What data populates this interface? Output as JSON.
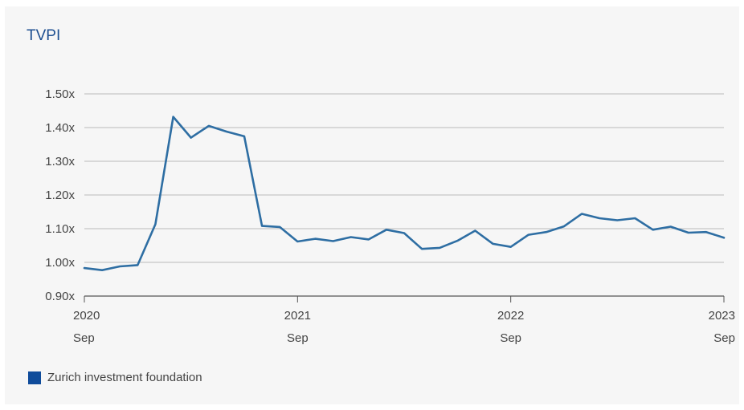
{
  "chart_data": {
    "type": "line",
    "title": "TVPI",
    "xlabel": "",
    "ylabel": "",
    "ylim": [
      0.9,
      1.5
    ],
    "y_ticks": [
      {
        "value": 0.9,
        "label": "0.90x"
      },
      {
        "value": 1.0,
        "label": "1.00x"
      },
      {
        "value": 1.1,
        "label": "1.10x"
      },
      {
        "value": 1.2,
        "label": "1.20x"
      },
      {
        "value": 1.3,
        "label": "1.30x"
      },
      {
        "value": 1.4,
        "label": "1.40x"
      },
      {
        "value": 1.5,
        "label": "1.50x"
      }
    ],
    "x_ticks": [
      {
        "index": 0,
        "year": "2020",
        "month": "Sep"
      },
      {
        "index": 12,
        "year": "2021",
        "month": "Sep"
      },
      {
        "index": 24,
        "year": "2022",
        "month": "Sep"
      },
      {
        "index": 36,
        "year": "2023",
        "month": "Sep"
      }
    ],
    "grid": "horizontal",
    "legend_position": "bottom-left",
    "series": [
      {
        "name": "Zurich investment foundation",
        "color": "#2e6ea3",
        "x": [
          "2020-09",
          "2020-10",
          "2020-11",
          "2020-12",
          "2021-01",
          "2021-02",
          "2021-03",
          "2021-04",
          "2021-05",
          "2021-06",
          "2021-07",
          "2021-08",
          "2021-09",
          "2021-10",
          "2021-11",
          "2021-12",
          "2022-01",
          "2022-02",
          "2022-03",
          "2022-04",
          "2022-05",
          "2022-06",
          "2022-07",
          "2022-08",
          "2022-09",
          "2022-10",
          "2022-11",
          "2022-12",
          "2023-01",
          "2023-02",
          "2023-03",
          "2023-04",
          "2023-05",
          "2023-06",
          "2023-07",
          "2023-08",
          "2023-09"
        ],
        "values": [
          0.983,
          0.977,
          0.988,
          0.992,
          1.113,
          1.432,
          1.37,
          1.405,
          1.388,
          1.374,
          1.108,
          1.105,
          1.062,
          1.07,
          1.063,
          1.075,
          1.068,
          1.097,
          1.087,
          1.04,
          1.043,
          1.064,
          1.094,
          1.055,
          1.046,
          1.082,
          1.09,
          1.107,
          1.144,
          1.131,
          1.125,
          1.131,
          1.097,
          1.106,
          1.088,
          1.09,
          1.073
        ]
      }
    ]
  },
  "legend": {
    "swatch_color": "#0f4c9b"
  }
}
